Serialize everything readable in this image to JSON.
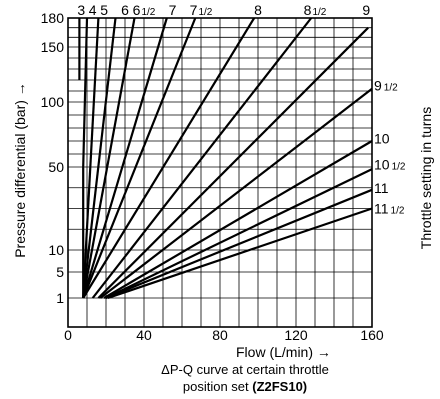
{
  "chart_data": {
    "type": "line",
    "x_ticks": [
      "0",
      "40",
      "80",
      "120",
      "160"
    ],
    "y_ticks": [
      "180",
      "150",
      "100",
      "50",
      "10",
      "5",
      "1"
    ],
    "xlabel": "Flow  (L/min) →",
    "ylabel": "Pressure differential  (bar) →",
    "right_label": "Throttle setting in turns",
    "caption_line1": "ΔP-Q curve at certain throttle",
    "caption_line2_prefix": "position set ",
    "caption_line2_bold": "(Z2FS10)",
    "xlim": [
      0,
      160
    ],
    "ylim": [
      0,
      180
    ],
    "grid": true,
    "series": [
      {
        "name": "3",
        "points": [
          [
            6,
            120
          ],
          [
            6,
            180
          ]
        ]
      },
      {
        "name": "4",
        "points": [
          [
            8,
            1
          ],
          [
            8,
            50
          ],
          [
            10,
            180
          ]
        ]
      },
      {
        "name": "5",
        "points": [
          [
            8,
            1
          ],
          [
            16,
            180
          ]
        ]
      },
      {
        "name": "6",
        "points": [
          [
            8,
            1
          ],
          [
            25,
            180
          ]
        ]
      },
      {
        "name": "6 1/2",
        "points": [
          [
            8,
            1
          ],
          [
            35,
            180
          ]
        ]
      },
      {
        "name": "7",
        "points": [
          [
            8,
            1
          ],
          [
            52,
            180
          ]
        ]
      },
      {
        "name": "7 1/2",
        "points": [
          [
            8,
            1
          ],
          [
            67,
            180
          ]
        ]
      },
      {
        "name": "8",
        "points": [
          [
            8,
            1
          ],
          [
            98,
            180
          ]
        ]
      },
      {
        "name": "8 1/2",
        "points": [
          [
            13,
            1
          ],
          [
            128,
            180
          ]
        ]
      },
      {
        "name": "9",
        "points": [
          [
            16,
            1
          ],
          [
            158,
            170
          ]
        ]
      },
      {
        "name": "9 1/2",
        "points": [
          [
            17,
            1
          ],
          [
            160,
            112
          ]
        ]
      },
      {
        "name": "10",
        "points": [
          [
            19,
            1
          ],
          [
            160,
            70
          ]
        ]
      },
      {
        "name": "10 1/2",
        "points": [
          [
            20,
            1
          ],
          [
            160,
            49
          ]
        ]
      },
      {
        "name": "11",
        "points": [
          [
            20,
            1
          ],
          [
            160,
            39
          ]
        ]
      },
      {
        "name": "11 1/2",
        "points": [
          [
            21,
            1
          ],
          [
            160,
            30
          ]
        ]
      }
    ],
    "top_labels": [
      {
        "text": "3",
        "x": 7
      },
      {
        "text": "4",
        "x": 13
      },
      {
        "text": "5",
        "x": 19
      },
      {
        "text": "6",
        "x": 30
      },
      {
        "text": "6",
        "sub": "1/2",
        "x": 40
      },
      {
        "text": "7",
        "x": 55
      },
      {
        "text": "7",
        "sub": "1/2",
        "x": 70
      },
      {
        "text": "8",
        "x": 100
      },
      {
        "text": "8",
        "sub": "1/2",
        "x": 130
      },
      {
        "text": "9",
        "x": 157
      }
    ],
    "right_labels": [
      {
        "text": "9",
        "sub": "1/2",
        "y": 115
      },
      {
        "text": "10",
        "sub": "",
        "y": 72
      },
      {
        "text": "10",
        "sub": "1/2",
        "y": 52
      },
      {
        "text": "11",
        "sub": "",
        "y": 40
      },
      {
        "text": "11",
        "sub": "1/2",
        "y": 30
      }
    ]
  }
}
